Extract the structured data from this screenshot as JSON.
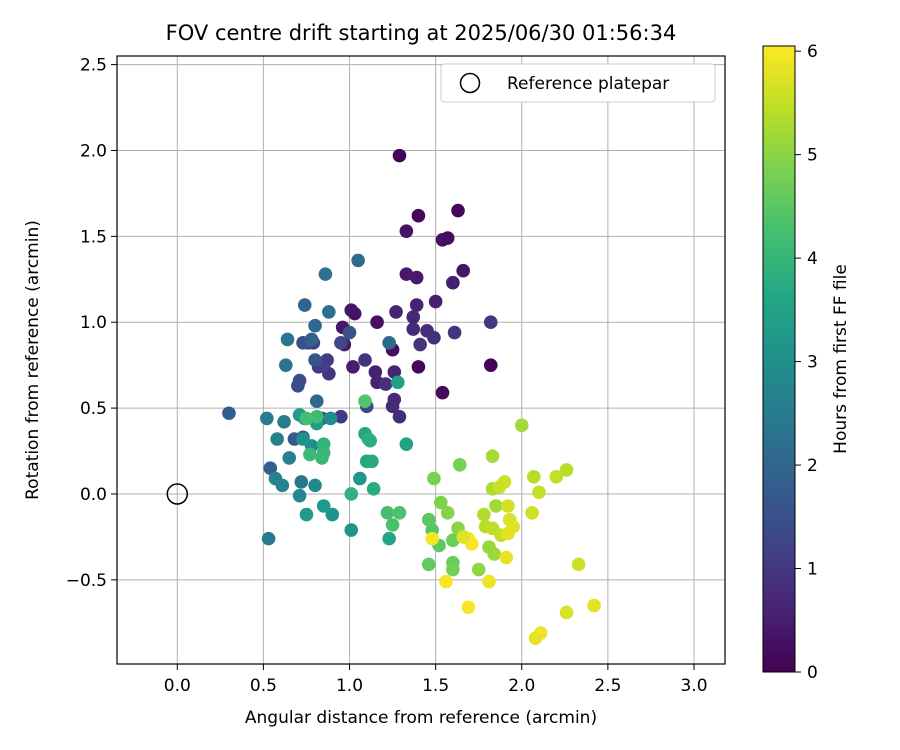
{
  "chart_data": {
    "type": "scatter",
    "title": "FOV centre drift starting at 2025/06/30 01:56:34",
    "xlabel": "Angular distance from reference (arcmin)",
    "ylabel": "Rotation from reference (arcmin)",
    "xlim": [
      -0.35,
      3.18
    ],
    "ylim": [
      -0.99,
      2.55
    ],
    "xticks": [
      0.0,
      0.5,
      1.0,
      1.5,
      2.0,
      2.5,
      3.0
    ],
    "yticks": [
      -0.5,
      0.0,
      0.5,
      1.0,
      1.5,
      2.0,
      2.5
    ],
    "xtick_labels": [
      "0.0",
      "0.5",
      "1.0",
      "1.5",
      "2.0",
      "2.5",
      "3.0"
    ],
    "ytick_labels": [
      "−0.5",
      "0.0",
      "0.5",
      "1.0",
      "1.5",
      "2.0",
      "2.5"
    ],
    "grid": true,
    "legend": {
      "placement": "top-right",
      "entries": [
        "Reference platepar"
      ]
    },
    "reference_point": {
      "x": 0.0,
      "y": 0.0
    },
    "colorbar": {
      "label": "Hours from first FF file",
      "colormap": "viridis",
      "range": [
        0,
        6.05
      ],
      "ticks": [
        0,
        1,
        2,
        3,
        4,
        5,
        6
      ],
      "tick_labels": [
        "0",
        "1",
        "2",
        "3",
        "4",
        "5",
        "6"
      ]
    },
    "series": [
      {
        "points": [
          [
            1.29,
            1.97,
            0.05
          ],
          [
            1.63,
            1.65,
            0.1
          ],
          [
            1.4,
            1.62,
            0.15
          ],
          [
            1.57,
            1.49,
            0.2
          ],
          [
            1.54,
            1.48,
            0.25
          ],
          [
            1.33,
            1.53,
            0.3
          ],
          [
            1.66,
            1.3,
            0.35
          ],
          [
            1.33,
            1.28,
            0.4
          ],
          [
            1.39,
            1.26,
            0.45
          ],
          [
            1.6,
            1.23,
            0.5
          ],
          [
            1.5,
            1.12,
            0.55
          ],
          [
            1.39,
            1.1,
            0.6
          ],
          [
            1.27,
            1.06,
            0.65
          ],
          [
            1.37,
            1.03,
            0.7
          ],
          [
            1.37,
            0.96,
            0.75
          ],
          [
            1.45,
            0.95,
            0.8
          ],
          [
            1.49,
            0.91,
            0.85
          ],
          [
            1.41,
            0.87,
            0.9
          ],
          [
            1.61,
            0.94,
            0.95
          ],
          [
            1.82,
            1.0,
            1.0
          ],
          [
            1.82,
            0.75,
            0.05
          ],
          [
            1.4,
            0.74,
            0.1
          ],
          [
            1.54,
            0.59,
            0.15
          ],
          [
            1.25,
            0.84,
            0.2
          ],
          [
            1.16,
            1.0,
            0.25
          ],
          [
            1.03,
            1.05,
            0.3
          ],
          [
            1.01,
            1.07,
            0.35
          ],
          [
            0.96,
            0.97,
            0.4
          ],
          [
            0.97,
            0.87,
            0.45
          ],
          [
            1.02,
            0.74,
            0.5
          ],
          [
            1.15,
            0.71,
            0.55
          ],
          [
            1.16,
            0.65,
            0.6
          ],
          [
            1.26,
            0.71,
            0.65
          ],
          [
            1.26,
            0.55,
            0.7
          ],
          [
            1.25,
            0.51,
            0.75
          ],
          [
            1.29,
            0.45,
            0.8
          ],
          [
            1.21,
            0.64,
            0.85
          ],
          [
            1.09,
            0.78,
            0.9
          ],
          [
            0.88,
            0.7,
            0.95
          ],
          [
            0.82,
            0.74,
            1.0
          ],
          [
            0.95,
            0.45,
            1.05
          ],
          [
            0.87,
            0.78,
            1.1
          ],
          [
            0.85,
            0.75,
            1.15
          ],
          [
            0.79,
            0.88,
            1.2
          ],
          [
            0.76,
            0.88,
            1.25
          ],
          [
            0.95,
            0.88,
            1.3
          ],
          [
            1.1,
            0.51,
            1.35
          ],
          [
            0.7,
            0.63,
            1.4
          ],
          [
            0.71,
            0.66,
            1.45
          ],
          [
            0.73,
            0.88,
            1.5
          ],
          [
            1.0,
            0.94,
            1.55
          ],
          [
            0.8,
            0.78,
            1.6
          ],
          [
            0.84,
            0.44,
            1.65
          ],
          [
            0.73,
            0.33,
            1.7
          ],
          [
            0.68,
            0.32,
            1.75
          ],
          [
            0.3,
            0.47,
            1.8
          ],
          [
            0.54,
            0.15,
            1.85
          ],
          [
            0.78,
            0.9,
            1.9
          ],
          [
            0.74,
            1.1,
            1.95
          ],
          [
            0.81,
            0.54,
            2.0
          ],
          [
            0.8,
            0.98,
            2.05
          ],
          [
            1.23,
            0.88,
            2.1
          ],
          [
            1.05,
            1.36,
            2.15
          ],
          [
            0.88,
            1.06,
            2.2
          ],
          [
            0.86,
            1.28,
            2.25
          ],
          [
            0.64,
            0.9,
            2.3
          ],
          [
            0.63,
            0.75,
            2.35
          ],
          [
            0.72,
            0.07,
            2.4
          ],
          [
            0.53,
            -0.26,
            2.45
          ],
          [
            0.52,
            0.44,
            2.5
          ],
          [
            0.62,
            0.42,
            2.55
          ],
          [
            0.58,
            0.32,
            2.6
          ],
          [
            0.65,
            0.21,
            2.65
          ],
          [
            0.57,
            0.09,
            2.7
          ],
          [
            0.61,
            0.05,
            2.75
          ],
          [
            0.71,
            -0.01,
            2.8
          ],
          [
            0.8,
            0.05,
            2.85
          ],
          [
            0.89,
            0.44,
            2.9
          ],
          [
            0.74,
            0.44,
            2.95
          ],
          [
            0.78,
            0.28,
            3.0
          ],
          [
            0.73,
            0.32,
            3.05
          ],
          [
            0.9,
            -0.12,
            3.1
          ],
          [
            1.01,
            -0.21,
            3.15
          ],
          [
            1.06,
            0.09,
            3.2
          ],
          [
            0.85,
            -0.07,
            3.25
          ],
          [
            0.75,
            -0.12,
            3.3
          ],
          [
            0.71,
            0.46,
            3.35
          ],
          [
            0.81,
            0.41,
            3.4
          ],
          [
            1.28,
            0.65,
            3.45
          ],
          [
            1.33,
            0.29,
            3.5
          ],
          [
            1.23,
            -0.26,
            3.55
          ],
          [
            1.09,
            0.35,
            3.6
          ],
          [
            1.1,
            0.19,
            3.65
          ],
          [
            1.13,
            0.19,
            3.7
          ],
          [
            1.14,
            0.03,
            3.75
          ],
          [
            1.11,
            0.32,
            3.8
          ],
          [
            1.12,
            0.31,
            3.85
          ],
          [
            1.01,
            0.0,
            3.9
          ],
          [
            0.85,
            0.29,
            3.95
          ],
          [
            0.85,
            0.24,
            4.0
          ],
          [
            0.84,
            0.21,
            4.05
          ],
          [
            0.77,
            0.23,
            4.1
          ],
          [
            0.81,
            0.45,
            4.15
          ],
          [
            0.75,
            0.44,
            4.2
          ],
          [
            1.22,
            -0.11,
            4.25
          ],
          [
            1.25,
            -0.18,
            4.3
          ],
          [
            1.29,
            -0.11,
            4.35
          ],
          [
            1.09,
            0.54,
            4.4
          ],
          [
            1.48,
            -0.21,
            4.45
          ],
          [
            1.46,
            -0.15,
            4.5
          ],
          [
            1.52,
            -0.3,
            4.55
          ],
          [
            1.46,
            -0.41,
            4.6
          ],
          [
            1.6,
            -0.4,
            4.65
          ],
          [
            1.6,
            -0.27,
            4.7
          ],
          [
            1.6,
            -0.44,
            4.75
          ],
          [
            1.64,
            0.17,
            4.8
          ],
          [
            1.49,
            0.09,
            4.85
          ],
          [
            1.53,
            -0.05,
            4.9
          ],
          [
            1.57,
            -0.11,
            4.95
          ],
          [
            1.63,
            -0.2,
            5.0
          ],
          [
            1.75,
            -0.44,
            5.05
          ],
          [
            1.81,
            -0.31,
            5.1
          ],
          [
            1.84,
            -0.35,
            5.15
          ],
          [
            1.85,
            -0.07,
            5.2
          ],
          [
            1.83,
            0.22,
            5.25
          ],
          [
            1.83,
            0.03,
            5.3
          ],
          [
            1.78,
            -0.12,
            5.35
          ],
          [
            1.79,
            -0.19,
            5.4
          ],
          [
            1.83,
            -0.2,
            5.45
          ],
          [
            1.88,
            -0.24,
            5.5
          ],
          [
            1.87,
            0.04,
            5.55
          ],
          [
            1.9,
            0.07,
            5.6
          ],
          [
            1.92,
            -0.07,
            5.65
          ],
          [
            1.93,
            -0.15,
            5.7
          ],
          [
            1.95,
            -0.19,
            5.75
          ],
          [
            1.92,
            -0.23,
            5.8
          ],
          [
            1.91,
            -0.37,
            5.85
          ],
          [
            1.81,
            -0.51,
            5.9
          ],
          [
            1.69,
            -0.26,
            5.95
          ],
          [
            1.71,
            -0.29,
            6.0
          ],
          [
            1.66,
            -0.25,
            5.75
          ],
          [
            1.48,
            -0.26,
            5.95
          ],
          [
            1.56,
            -0.51,
            6.0
          ],
          [
            1.69,
            -0.66,
            6.0
          ],
          [
            2.0,
            0.4,
            5.2
          ],
          [
            2.07,
            0.1,
            5.4
          ],
          [
            2.1,
            0.01,
            5.5
          ],
          [
            2.06,
            -0.11,
            5.6
          ],
          [
            2.2,
            0.1,
            5.5
          ],
          [
            2.26,
            0.14,
            5.4
          ],
          [
            2.33,
            -0.41,
            5.6
          ],
          [
            2.26,
            -0.69,
            5.7
          ],
          [
            2.42,
            -0.65,
            5.8
          ],
          [
            2.11,
            -0.81,
            5.9
          ],
          [
            2.08,
            -0.84,
            5.85
          ]
        ]
      }
    ]
  }
}
